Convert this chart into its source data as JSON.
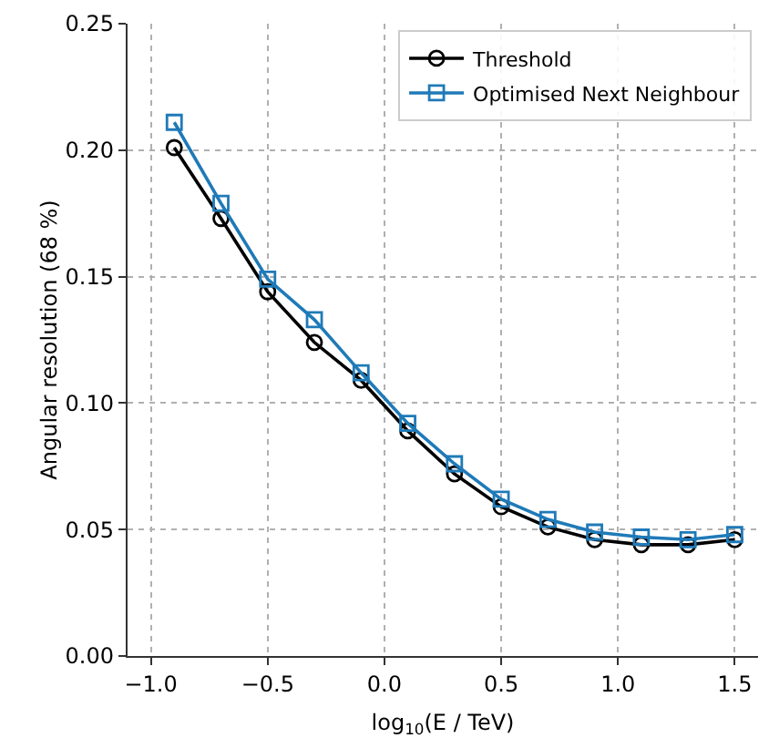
{
  "chart_data": {
    "type": "line",
    "xlabel": "log$_{10}$(E / TeV)",
    "ylabel": "Angular resolution (68 %)",
    "x": [
      -0.9,
      -0.7,
      -0.5,
      -0.3,
      -0.1,
      0.1,
      0.3,
      0.5,
      0.7,
      0.9,
      1.1,
      1.3,
      1.5
    ],
    "series": [
      {
        "name": "Threshold",
        "color": "#000000",
        "marker": "circle",
        "values": [
          0.201,
          0.173,
          0.144,
          0.124,
          0.109,
          0.089,
          0.072,
          0.059,
          0.051,
          0.046,
          0.044,
          0.044,
          0.046
        ]
      },
      {
        "name": "Optimised Next Neighbour",
        "color": "#1f7ab8",
        "marker": "square",
        "values": [
          0.211,
          0.179,
          0.149,
          0.133,
          0.112,
          0.092,
          0.076,
          0.062,
          0.054,
          0.049,
          0.047,
          0.046,
          0.048
        ]
      }
    ],
    "xlim": [
      -1.1,
      1.6
    ],
    "xticks": [
      {
        "value": -1.0,
        "label": "−1.0"
      },
      {
        "value": -0.5,
        "label": "−0.5"
      },
      {
        "value": 0,
        "label": "0.0"
      },
      {
        "value": 0.5,
        "label": "0.5"
      },
      {
        "value": 1.0,
        "label": "1.0"
      },
      {
        "value": 1.5,
        "label": "1.5"
      }
    ],
    "ylim": [
      0,
      0.25
    ],
    "yticks": [
      {
        "value": 0,
        "label": "0.00"
      },
      {
        "value": 0.05,
        "label": "0.05"
      },
      {
        "value": 0.1,
        "label": "0.10"
      },
      {
        "value": 0.15,
        "label": "0.15"
      },
      {
        "value": 0.2,
        "label": "0.20"
      },
      {
        "value": 0.25,
        "label": "0.25"
      }
    ],
    "grid": true,
    "legend": "top right",
    "line_style": "solid"
  }
}
